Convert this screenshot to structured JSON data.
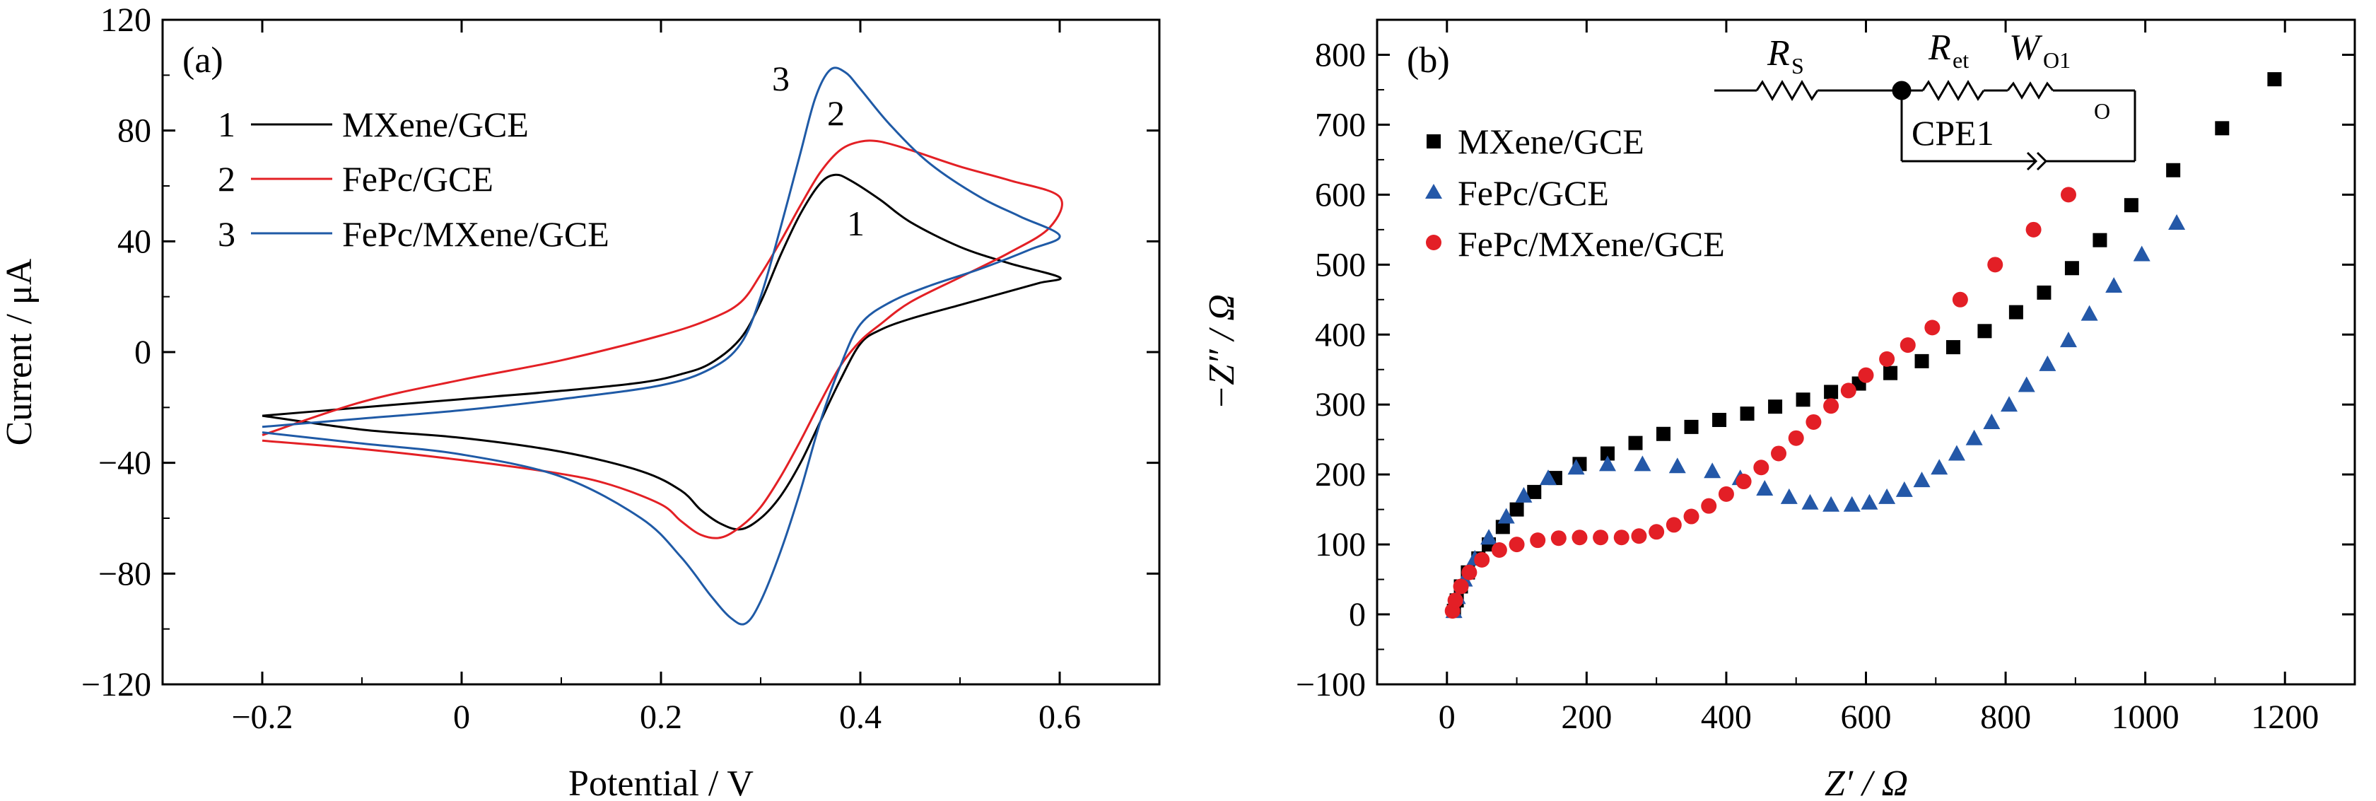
{
  "chart_data": [
    {
      "type": "line",
      "panel_label": "(a)",
      "xlabel": "Potential / V",
      "ylabel": "Current / μA",
      "xlim": [
        -0.3,
        0.7
      ],
      "ylim": [
        -120,
        120
      ],
      "xticks": [
        -0.2,
        0,
        0.2,
        0.4,
        0.6
      ],
      "xtick_labels": [
        "−0.2",
        "0",
        "0.2",
        "0.4",
        "0.6"
      ],
      "yticks": [
        120,
        80,
        40,
        0,
        -40,
        -80,
        -120
      ],
      "ytick_labels": [
        "120",
        "80",
        "40",
        "0",
        "−40",
        "−80",
        "−120"
      ],
      "legend_position": "top-left",
      "series": [
        {
          "number": "1",
          "name": "MXene/GCE",
          "color": "#000000",
          "peak_label": "1",
          "points": [
            [
              -0.2,
              -23
            ],
            [
              -0.1,
              -20
            ],
            [
              0,
              -17
            ],
            [
              0.1,
              -14
            ],
            [
              0.18,
              -11
            ],
            [
              0.22,
              -8
            ],
            [
              0.25,
              -4
            ],
            [
              0.28,
              5
            ],
            [
              0.3,
              18
            ],
            [
              0.32,
              35
            ],
            [
              0.34,
              50
            ],
            [
              0.36,
              61
            ],
            [
              0.375,
              64
            ],
            [
              0.39,
              62
            ],
            [
              0.42,
              55
            ],
            [
              0.45,
              47
            ],
            [
              0.5,
              38
            ],
            [
              0.55,
              32
            ],
            [
              0.6,
              27
            ],
            [
              0.58,
              25
            ],
            [
              0.55,
              22
            ],
            [
              0.5,
              17
            ],
            [
              0.45,
              12
            ],
            [
              0.42,
              8
            ],
            [
              0.4,
              3
            ],
            [
              0.38,
              -10
            ],
            [
              0.36,
              -25
            ],
            [
              0.34,
              -40
            ],
            [
              0.32,
              -52
            ],
            [
              0.3,
              -60
            ],
            [
              0.28,
              -64
            ],
            [
              0.26,
              -62
            ],
            [
              0.24,
              -57
            ],
            [
              0.22,
              -50
            ],
            [
              0.18,
              -43
            ],
            [
              0.1,
              -36
            ],
            [
              0,
              -31
            ],
            [
              -0.1,
              -28
            ],
            [
              -0.2,
              -23
            ]
          ]
        },
        {
          "number": "2",
          "name": "FePc/GCE",
          "color": "#e32025",
          "peak_label": "2",
          "points": [
            [
              -0.2,
              -30
            ],
            [
              -0.1,
              -18
            ],
            [
              0,
              -10
            ],
            [
              0.1,
              -3
            ],
            [
              0.2,
              6
            ],
            [
              0.25,
              12
            ],
            [
              0.28,
              18
            ],
            [
              0.3,
              28
            ],
            [
              0.32,
              40
            ],
            [
              0.34,
              53
            ],
            [
              0.36,
              65
            ],
            [
              0.38,
              73
            ],
            [
              0.4,
              76
            ],
            [
              0.42,
              76
            ],
            [
              0.45,
              73
            ],
            [
              0.5,
              67
            ],
            [
              0.55,
              62
            ],
            [
              0.6,
              56
            ],
            [
              0.59,
              45
            ],
            [
              0.55,
              36
            ],
            [
              0.5,
              27
            ],
            [
              0.45,
              18
            ],
            [
              0.42,
              10
            ],
            [
              0.4,
              4
            ],
            [
              0.38,
              -5
            ],
            [
              0.36,
              -18
            ],
            [
              0.34,
              -32
            ],
            [
              0.32,
              -45
            ],
            [
              0.3,
              -56
            ],
            [
              0.28,
              -63
            ],
            [
              0.26,
              -67
            ],
            [
              0.24,
              -66
            ],
            [
              0.22,
              -61
            ],
            [
              0.2,
              -55
            ],
            [
              0.15,
              -48
            ],
            [
              0.1,
              -44
            ],
            [
              0,
              -39
            ],
            [
              -0.1,
              -35
            ],
            [
              -0.2,
              -32
            ]
          ]
        },
        {
          "number": "3",
          "name": "FePc/MXene/GCE",
          "color": "#1f5aa6",
          "peak_label": "3",
          "points": [
            [
              -0.2,
              -27
            ],
            [
              -0.1,
              -24
            ],
            [
              0,
              -21
            ],
            [
              0.1,
              -17
            ],
            [
              0.2,
              -12
            ],
            [
              0.25,
              -6
            ],
            [
              0.28,
              3
            ],
            [
              0.3,
              20
            ],
            [
              0.32,
              45
            ],
            [
              0.34,
              72
            ],
            [
              0.355,
              92
            ],
            [
              0.37,
              102
            ],
            [
              0.385,
              101
            ],
            [
              0.4,
              95
            ],
            [
              0.43,
              82
            ],
            [
              0.47,
              68
            ],
            [
              0.52,
              56
            ],
            [
              0.56,
              49
            ],
            [
              0.6,
              42
            ],
            [
              0.57,
              37
            ],
            [
              0.52,
              30
            ],
            [
              0.47,
              24
            ],
            [
              0.43,
              18
            ],
            [
              0.4,
              10
            ],
            [
              0.38,
              -5
            ],
            [
              0.36,
              -25
            ],
            [
              0.34,
              -50
            ],
            [
              0.32,
              -72
            ],
            [
              0.3,
              -90
            ],
            [
              0.285,
              -98
            ],
            [
              0.27,
              -96
            ],
            [
              0.25,
              -88
            ],
            [
              0.22,
              -74
            ],
            [
              0.18,
              -60
            ],
            [
              0.1,
              -45
            ],
            [
              0,
              -37
            ],
            [
              -0.1,
              -33
            ],
            [
              -0.2,
              -29
            ]
          ]
        }
      ]
    },
    {
      "type": "scatter",
      "panel_label": "(b)",
      "xlabel": "Z′ / Ω",
      "ylabel": "−Z″ / Ω",
      "xlim": [
        -100,
        1300
      ],
      "ylim": [
        -100,
        850
      ],
      "xticks": [
        0,
        200,
        400,
        600,
        800,
        1000,
        1200
      ],
      "xtick_labels": [
        "0",
        "200",
        "400",
        "600",
        "800",
        "1000",
        "1200"
      ],
      "yticks": [
        800,
        700,
        600,
        500,
        400,
        300,
        200,
        100,
        0,
        -100
      ],
      "ytick_labels": [
        "800",
        "700",
        "600",
        "500",
        "400",
        "300",
        "200",
        "100",
        "0",
        "−100"
      ],
      "legend_position": "top-left",
      "inset_circuit": {
        "rs": "R",
        "rs_sub": "S",
        "ret": "R",
        "ret_sub": "et",
        "w": "W",
        "w_sub": "O1",
        "w_sub2": "O",
        "cpe": "CPE1"
      },
      "series": [
        {
          "name": "MXene/GCE",
          "marker": "square",
          "color": "#000000",
          "points": [
            [
              10,
              5
            ],
            [
              14,
              20
            ],
            [
              20,
              40
            ],
            [
              30,
              60
            ],
            [
              45,
              80
            ],
            [
              60,
              100
            ],
            [
              80,
              125
            ],
            [
              100,
              150
            ],
            [
              125,
              175
            ],
            [
              155,
              195
            ],
            [
              190,
              215
            ],
            [
              230,
              230
            ],
            [
              270,
              245
            ],
            [
              310,
              258
            ],
            [
              350,
              268
            ],
            [
              390,
              278
            ],
            [
              430,
              287
            ],
            [
              470,
              297
            ],
            [
              510,
              307
            ],
            [
              550,
              318
            ],
            [
              590,
              330
            ],
            [
              635,
              345
            ],
            [
              680,
              362
            ],
            [
              725,
              382
            ],
            [
              770,
              405
            ],
            [
              815,
              432
            ],
            [
              855,
              460
            ],
            [
              895,
              495
            ],
            [
              935,
              535
            ],
            [
              980,
              585
            ],
            [
              1040,
              635
            ],
            [
              1110,
              695
            ],
            [
              1185,
              765
            ]
          ]
        },
        {
          "name": "FePc/GCE",
          "marker": "triangle",
          "color": "#2458a8",
          "points": [
            [
              10,
              5
            ],
            [
              15,
              25
            ],
            [
              25,
              50
            ],
            [
              40,
              80
            ],
            [
              60,
              110
            ],
            [
              85,
              140
            ],
            [
              110,
              170
            ],
            [
              145,
              195
            ],
            [
              185,
              210
            ],
            [
              230,
              215
            ],
            [
              280,
              215
            ],
            [
              330,
              212
            ],
            [
              380,
              205
            ],
            [
              420,
              195
            ],
            [
              455,
              180
            ],
            [
              490,
              168
            ],
            [
              520,
              160
            ],
            [
              550,
              157
            ],
            [
              580,
              157
            ],
            [
              605,
              160
            ],
            [
              630,
              168
            ],
            [
              655,
              178
            ],
            [
              680,
              192
            ],
            [
              705,
              210
            ],
            [
              730,
              230
            ],
            [
              755,
              252
            ],
            [
              780,
              275
            ],
            [
              805,
              300
            ],
            [
              830,
              328
            ],
            [
              860,
              358
            ],
            [
              890,
              392
            ],
            [
              920,
              430
            ],
            [
              955,
              470
            ],
            [
              995,
              515
            ],
            [
              1045,
              560
            ]
          ]
        },
        {
          "name": "FePc/MXene/GCE",
          "marker": "circle",
          "color": "#e31f26",
          "points": [
            [
              8,
              5
            ],
            [
              12,
              20
            ],
            [
              20,
              40
            ],
            [
              32,
              60
            ],
            [
              50,
              78
            ],
            [
              75,
              92
            ],
            [
              100,
              100
            ],
            [
              130,
              106
            ],
            [
              160,
              109
            ],
            [
              190,
              110
            ],
            [
              220,
              110
            ],
            [
              250,
              110
            ],
            [
              275,
              112
            ],
            [
              300,
              118
            ],
            [
              325,
              128
            ],
            [
              350,
              140
            ],
            [
              375,
              155
            ],
            [
              400,
              172
            ],
            [
              425,
              190
            ],
            [
              450,
              210
            ],
            [
              475,
              230
            ],
            [
              500,
              252
            ],
            [
              525,
              275
            ],
            [
              550,
              298
            ],
            [
              575,
              320
            ],
            [
              600,
              342
            ],
            [
              630,
              365
            ],
            [
              660,
              385
            ],
            [
              695,
              410
            ],
            [
              735,
              450
            ],
            [
              785,
              500
            ],
            [
              840,
              550
            ],
            [
              890,
              600
            ]
          ]
        }
      ]
    }
  ]
}
